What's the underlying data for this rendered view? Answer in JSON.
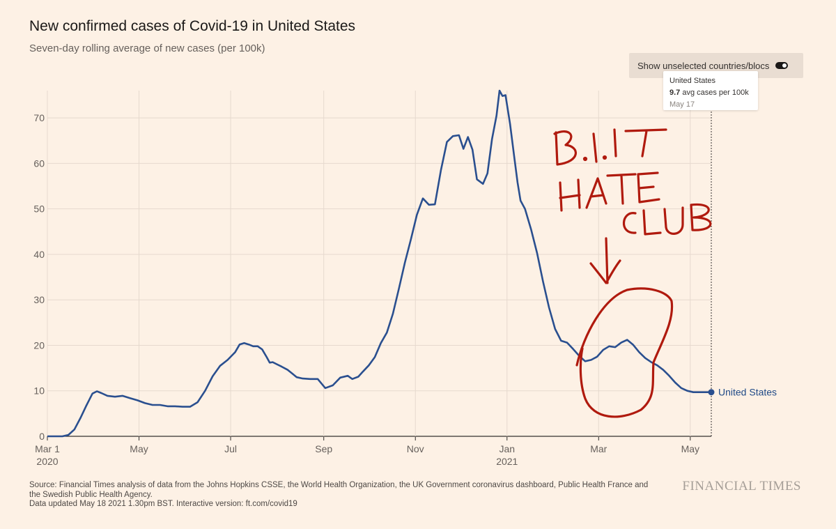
{
  "header": {
    "title": "New confirmed cases of Covid-19 in United States",
    "subtitle": "Seven-day rolling average of new cases (per 100k)"
  },
  "controls": {
    "toggle_label": "Show unselected countries/blocs",
    "toggle_on": true
  },
  "tooltip": {
    "country": "United States",
    "value": "9.7",
    "value_suffix": " avg cases per 100k",
    "date": "May 17"
  },
  "footer": {
    "source": "Source: Financial Times analysis of data from the Johns Hopkins CSSE, the World Health Organization, the UK Government coronavirus dashboard, Public Health France and the Swedish Public Health Agency.",
    "updated": "Data updated May 18 2021 1.30pm BST. Interactive version: ft.com/covid19",
    "logo": "FINANCIAL TIMES"
  },
  "annotation": {
    "handwriting": [
      "B.1.1.7",
      "HATE",
      "CLUB"
    ],
    "color": "#b01a0e"
  },
  "colors": {
    "series": "#2a4f8f",
    "background": "#fdf1e5",
    "grid": "#e6d9ce"
  },
  "chart_data": {
    "type": "line",
    "title": "New confirmed cases of Covid-19 in United States",
    "subtitle": "Seven-day rolling average of new cases (per 100k)",
    "xlabel": "",
    "ylabel": "",
    "ylim": [
      0,
      75
    ],
    "yticks": [
      0,
      10,
      20,
      30,
      40,
      50,
      60,
      70
    ],
    "xlim_days": [
      0,
      442
    ],
    "xticks": [
      {
        "day": 0,
        "label": "Mar 1",
        "sub": "2020"
      },
      {
        "day": 61,
        "label": "May",
        "sub": ""
      },
      {
        "day": 122,
        "label": "Jul",
        "sub": ""
      },
      {
        "day": 184,
        "label": "Sep",
        "sub": ""
      },
      {
        "day": 245,
        "label": "Nov",
        "sub": ""
      },
      {
        "day": 306,
        "label": "Jan",
        "sub": "2021"
      },
      {
        "day": 367,
        "label": "Mar",
        "sub": ""
      },
      {
        "day": 428,
        "label": "May",
        "sub": ""
      }
    ],
    "grid": true,
    "series": [
      {
        "name": "United States",
        "x_start_date": "2020-03-01",
        "x_days": [
          0,
          5,
          10,
          14,
          18,
          22,
          26,
          30,
          33,
          36,
          40,
          45,
          50,
          55,
          60,
          65,
          70,
          75,
          80,
          85,
          90,
          95,
          100,
          105,
          110,
          115,
          120,
          125,
          128,
          131,
          134,
          137,
          140,
          143,
          146,
          148,
          150,
          153,
          156,
          160,
          163,
          166,
          170,
          175,
          180,
          185,
          190,
          195,
          200,
          203,
          207,
          210,
          214,
          218,
          222,
          226,
          230,
          234,
          238,
          242,
          246,
          250,
          254,
          258,
          262,
          266,
          270,
          274,
          277,
          280,
          283,
          286,
          290,
          293,
          296,
          299,
          301,
          303,
          305,
          308,
          311,
          313,
          315,
          318,
          322,
          326,
          330,
          334,
          338,
          342,
          346,
          350,
          354,
          358,
          362,
          366,
          370,
          374,
          378,
          382,
          386,
          390,
          394,
          398,
          402,
          406,
          410,
          414,
          418,
          422,
          426,
          430,
          434,
          438,
          442
        ],
        "values": [
          0.0,
          0.0,
          0.0,
          0.3,
          1.5,
          4.0,
          6.8,
          9.4,
          9.9,
          9.5,
          8.9,
          8.7,
          8.9,
          8.4,
          7.9,
          7.3,
          6.9,
          6.9,
          6.6,
          6.6,
          6.5,
          6.5,
          7.5,
          10.0,
          13.2,
          15.5,
          16.8,
          18.5,
          20.2,
          20.5,
          20.2,
          19.8,
          19.8,
          19.1,
          17.4,
          16.2,
          16.3,
          15.8,
          15.3,
          14.6,
          13.8,
          13.0,
          12.7,
          12.6,
          12.6,
          10.6,
          11.2,
          12.9,
          13.3,
          12.6,
          13.1,
          14.2,
          15.6,
          17.4,
          20.5,
          22.8,
          26.9,
          32.4,
          38.2,
          43.3,
          48.7,
          52.3,
          50.9,
          51.0,
          58.5,
          64.7,
          66.0,
          66.2,
          63.2,
          65.8,
          63.0,
          56.5,
          55.5,
          57.8,
          65.3,
          70.5,
          76.0,
          74.8,
          75.0,
          68.7,
          61.0,
          55.8,
          51.8,
          50.0,
          45.5,
          40.3,
          34.0,
          28.3,
          23.6,
          21.0,
          20.6,
          19.2,
          17.7,
          16.5,
          16.8,
          17.5,
          19.0,
          19.8,
          19.6,
          20.6,
          21.2,
          20.1,
          18.5,
          17.2,
          16.3,
          15.6,
          14.6,
          13.3,
          11.8,
          10.6,
          10.0,
          9.7,
          9.7,
          9.7,
          9.7
        ]
      }
    ],
    "end_label": "United States",
    "end_value": 9.7
  }
}
